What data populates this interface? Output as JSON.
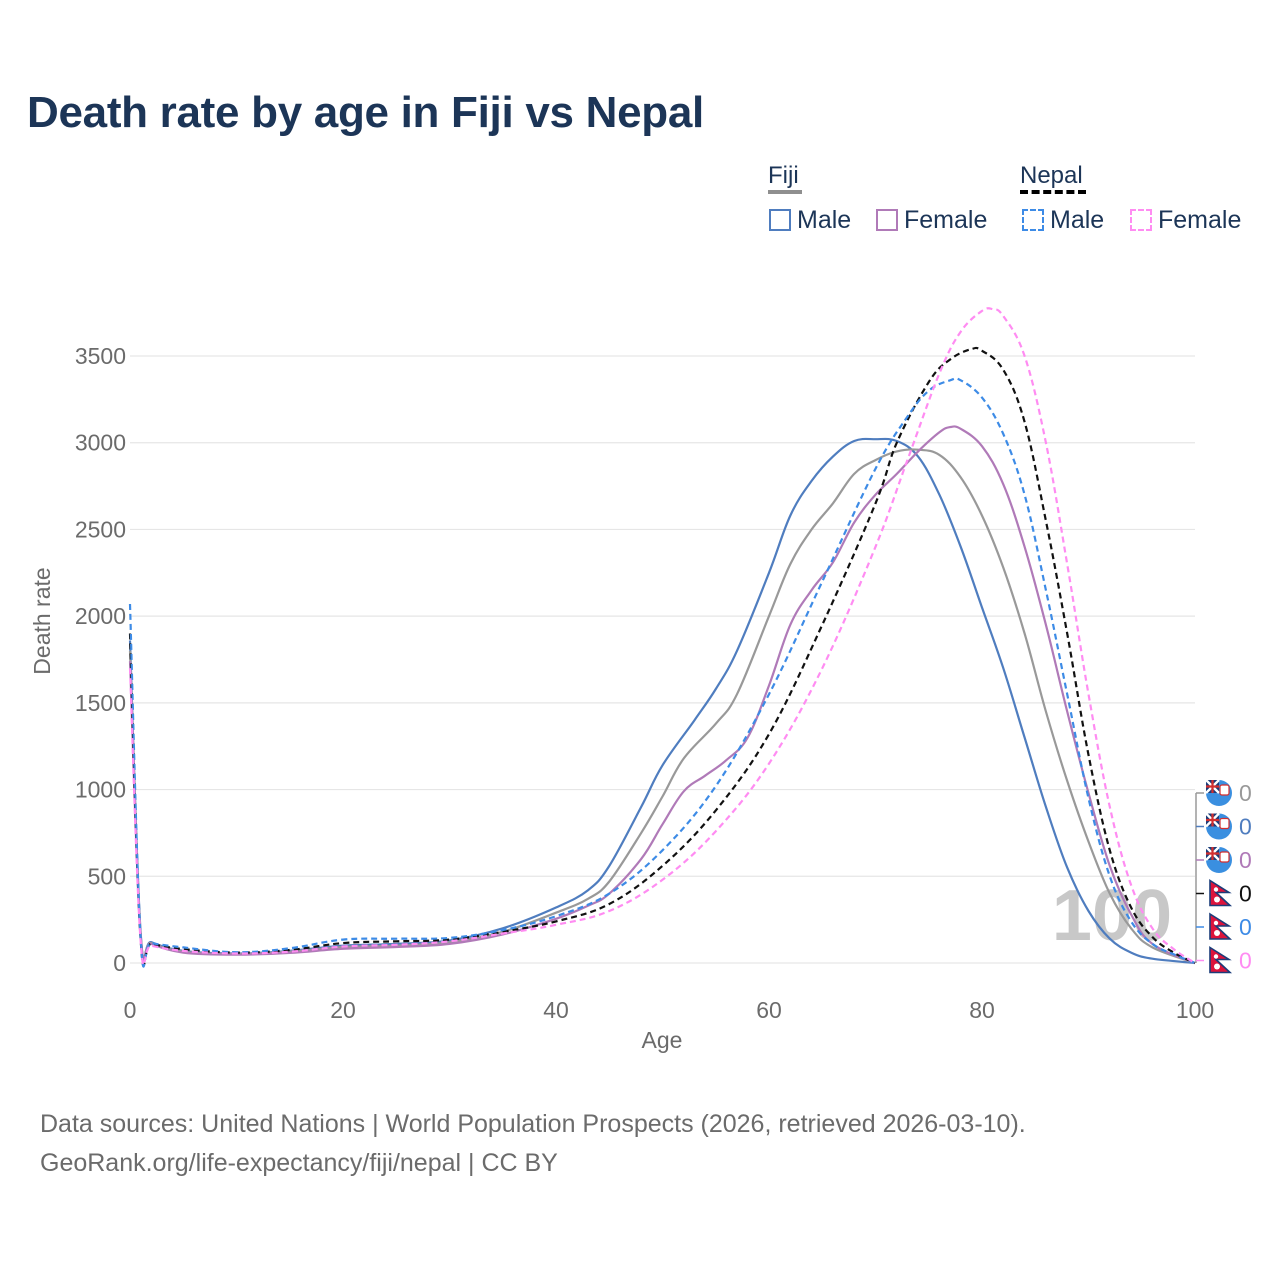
{
  "title": "Death rate by age in Fiji vs Nepal",
  "legend": {
    "groups": [
      {
        "name": "Fiji",
        "line_color": "#8f8f8f",
        "line_style": "solid"
      },
      {
        "name": "Nepal",
        "line_color": "#000000",
        "line_style": "dashed"
      }
    ],
    "items": [
      {
        "label": "Male",
        "color": "#4f7dbf",
        "style": "solid"
      },
      {
        "label": "Female",
        "color": "#b07ab8",
        "style": "solid"
      },
      {
        "label": "Male",
        "color": "#3d8be6",
        "style": "dashed"
      },
      {
        "label": "Female",
        "color": "#ff8cf2",
        "style": "dashed"
      }
    ]
  },
  "source": {
    "line1": "Data sources: United Nations | World Population Prospects (2026, retrieved 2026-03-10).",
    "line2": "GeoRank.org/life-expectancy/fiji/nepal | CC BY"
  },
  "chart_data": {
    "type": "line",
    "title": "Death rate by age in Fiji vs Nepal",
    "xlabel": "Age",
    "ylabel": "Death rate",
    "xlim": [
      0,
      100
    ],
    "ylim": [
      0,
      3900
    ],
    "xticks": [
      0,
      20,
      40,
      60,
      80,
      100
    ],
    "yticks": [
      0,
      500,
      1000,
      1500,
      2000,
      2500,
      3000,
      3500
    ],
    "grid": true,
    "watermark": "100",
    "series": [
      {
        "name": "Fiji Male",
        "color": "#4f7dbf",
        "dash": false,
        "points": [
          [
            0,
            1860
          ],
          [
            1,
            170
          ],
          [
            2,
            120
          ],
          [
            5,
            70
          ],
          [
            10,
            55
          ],
          [
            15,
            70
          ],
          [
            20,
            100
          ],
          [
            25,
            110
          ],
          [
            30,
            130
          ],
          [
            35,
            200
          ],
          [
            40,
            320
          ],
          [
            43,
            420
          ],
          [
            45,
            560
          ],
          [
            48,
            900
          ],
          [
            50,
            1140
          ],
          [
            53,
            1400
          ],
          [
            55,
            1580
          ],
          [
            57,
            1800
          ],
          [
            60,
            2250
          ],
          [
            62,
            2580
          ],
          [
            64,
            2780
          ],
          [
            66,
            2920
          ],
          [
            68,
            3010
          ],
          [
            70,
            3020
          ],
          [
            72,
            3010
          ],
          [
            74,
            2920
          ],
          [
            76,
            2700
          ],
          [
            78,
            2400
          ],
          [
            80,
            2050
          ],
          [
            82,
            1700
          ],
          [
            84,
            1300
          ],
          [
            86,
            900
          ],
          [
            88,
            550
          ],
          [
            90,
            300
          ],
          [
            92,
            140
          ],
          [
            94,
            60
          ],
          [
            96,
            25
          ],
          [
            100,
            0
          ]
        ]
      },
      {
        "name": "Fiji Both",
        "color": "#999999",
        "dash": false,
        "points": [
          [
            0,
            1800
          ],
          [
            1,
            160
          ],
          [
            2,
            115
          ],
          [
            5,
            65
          ],
          [
            10,
            52
          ],
          [
            15,
            65
          ],
          [
            20,
            92
          ],
          [
            25,
            100
          ],
          [
            30,
            120
          ],
          [
            35,
            180
          ],
          [
            40,
            290
          ],
          [
            43,
            370
          ],
          [
            45,
            470
          ],
          [
            48,
            750
          ],
          [
            50,
            960
          ],
          [
            52,
            1180
          ],
          [
            55,
            1380
          ],
          [
            57,
            1550
          ],
          [
            60,
            2000
          ],
          [
            62,
            2300
          ],
          [
            64,
            2500
          ],
          [
            66,
            2650
          ],
          [
            68,
            2820
          ],
          [
            70,
            2900
          ],
          [
            72,
            2950
          ],
          [
            74,
            2960
          ],
          [
            76,
            2930
          ],
          [
            78,
            2800
          ],
          [
            80,
            2580
          ],
          [
            82,
            2280
          ],
          [
            84,
            1900
          ],
          [
            86,
            1450
          ],
          [
            88,
            1050
          ],
          [
            90,
            700
          ],
          [
            92,
            400
          ],
          [
            94,
            200
          ],
          [
            96,
            90
          ],
          [
            100,
            0
          ]
        ]
      },
      {
        "name": "Fiji Female",
        "color": "#b07ab8",
        "dash": false,
        "points": [
          [
            0,
            1740
          ],
          [
            1,
            150
          ],
          [
            2,
            110
          ],
          [
            5,
            60
          ],
          [
            10,
            48
          ],
          [
            15,
            58
          ],
          [
            20,
            82
          ],
          [
            25,
            92
          ],
          [
            30,
            110
          ],
          [
            35,
            165
          ],
          [
            40,
            255
          ],
          [
            43,
            330
          ],
          [
            45,
            400
          ],
          [
            48,
            600
          ],
          [
            50,
            800
          ],
          [
            52,
            990
          ],
          [
            54,
            1080
          ],
          [
            56,
            1170
          ],
          [
            58,
            1300
          ],
          [
            60,
            1600
          ],
          [
            62,
            1950
          ],
          [
            64,
            2150
          ],
          [
            66,
            2310
          ],
          [
            68,
            2540
          ],
          [
            70,
            2700
          ],
          [
            72,
            2820
          ],
          [
            74,
            2950
          ],
          [
            76,
            3060
          ],
          [
            77,
            3090
          ],
          [
            78,
            3080
          ],
          [
            80,
            2980
          ],
          [
            82,
            2760
          ],
          [
            84,
            2400
          ],
          [
            86,
            1950
          ],
          [
            88,
            1450
          ],
          [
            90,
            980
          ],
          [
            92,
            560
          ],
          [
            94,
            280
          ],
          [
            96,
            110
          ],
          [
            100,
            0
          ]
        ]
      },
      {
        "name": "Nepal Both",
        "color": "#111111",
        "dash": true,
        "points": [
          [
            0,
            1900
          ],
          [
            1,
            130
          ],
          [
            2,
            110
          ],
          [
            5,
            80
          ],
          [
            10,
            60
          ],
          [
            15,
            75
          ],
          [
            20,
            115
          ],
          [
            25,
            125
          ],
          [
            30,
            135
          ],
          [
            35,
            180
          ],
          [
            40,
            240
          ],
          [
            45,
            340
          ],
          [
            50,
            560
          ],
          [
            55,
            880
          ],
          [
            60,
            1320
          ],
          [
            65,
            1950
          ],
          [
            70,
            2650
          ],
          [
            72,
            3000
          ],
          [
            75,
            3350
          ],
          [
            77,
            3480
          ],
          [
            79,
            3540
          ],
          [
            80,
            3530
          ],
          [
            82,
            3420
          ],
          [
            84,
            3120
          ],
          [
            86,
            2550
          ],
          [
            88,
            1900
          ],
          [
            90,
            1200
          ],
          [
            92,
            650
          ],
          [
            94,
            320
          ],
          [
            96,
            150
          ],
          [
            98,
            60
          ],
          [
            100,
            0
          ]
        ]
      },
      {
        "name": "Nepal Male",
        "color": "#3d8be6",
        "dash": true,
        "points": [
          [
            0,
            2070
          ],
          [
            1,
            140
          ],
          [
            2,
            115
          ],
          [
            5,
            90
          ],
          [
            10,
            62
          ],
          [
            15,
            85
          ],
          [
            20,
            135
          ],
          [
            25,
            140
          ],
          [
            30,
            145
          ],
          [
            35,
            190
          ],
          [
            40,
            270
          ],
          [
            45,
            400
          ],
          [
            50,
            650
          ],
          [
            55,
            1020
          ],
          [
            60,
            1550
          ],
          [
            65,
            2200
          ],
          [
            70,
            2850
          ],
          [
            73,
            3150
          ],
          [
            75,
            3300
          ],
          [
            77,
            3360
          ],
          [
            78,
            3360
          ],
          [
            80,
            3260
          ],
          [
            82,
            3050
          ],
          [
            84,
            2700
          ],
          [
            86,
            2150
          ],
          [
            88,
            1550
          ],
          [
            90,
            950
          ],
          [
            92,
            500
          ],
          [
            94,
            240
          ],
          [
            96,
            110
          ],
          [
            98,
            50
          ],
          [
            100,
            0
          ]
        ]
      },
      {
        "name": "Nepal Female",
        "color": "#ff8cf2",
        "dash": true,
        "points": [
          [
            0,
            1700
          ],
          [
            1,
            120
          ],
          [
            2,
            100
          ],
          [
            5,
            70
          ],
          [
            10,
            55
          ],
          [
            15,
            65
          ],
          [
            20,
            95
          ],
          [
            25,
            105
          ],
          [
            30,
            125
          ],
          [
            35,
            170
          ],
          [
            40,
            220
          ],
          [
            45,
            300
          ],
          [
            50,
            480
          ],
          [
            55,
            760
          ],
          [
            60,
            1150
          ],
          [
            65,
            1700
          ],
          [
            70,
            2400
          ],
          [
            73,
            2900
          ],
          [
            76,
            3400
          ],
          [
            78,
            3640
          ],
          [
            80,
            3760
          ],
          [
            81,
            3770
          ],
          [
            82,
            3730
          ],
          [
            84,
            3500
          ],
          [
            86,
            3000
          ],
          [
            88,
            2300
          ],
          [
            90,
            1550
          ],
          [
            92,
            900
          ],
          [
            94,
            450
          ],
          [
            96,
            200
          ],
          [
            98,
            80
          ],
          [
            100,
            0
          ]
        ]
      }
    ],
    "end_labels": [
      {
        "flag": "fiji",
        "value": "0",
        "color": "#999999"
      },
      {
        "flag": "fiji",
        "value": "0",
        "color": "#4f7dbf"
      },
      {
        "flag": "fiji",
        "value": "0",
        "color": "#b07ab8"
      },
      {
        "flag": "nepal",
        "value": "0",
        "color": "#111111"
      },
      {
        "flag": "nepal",
        "value": "0",
        "color": "#3d8be6"
      },
      {
        "flag": "nepal",
        "value": "0",
        "color": "#ff8cf2"
      }
    ]
  }
}
